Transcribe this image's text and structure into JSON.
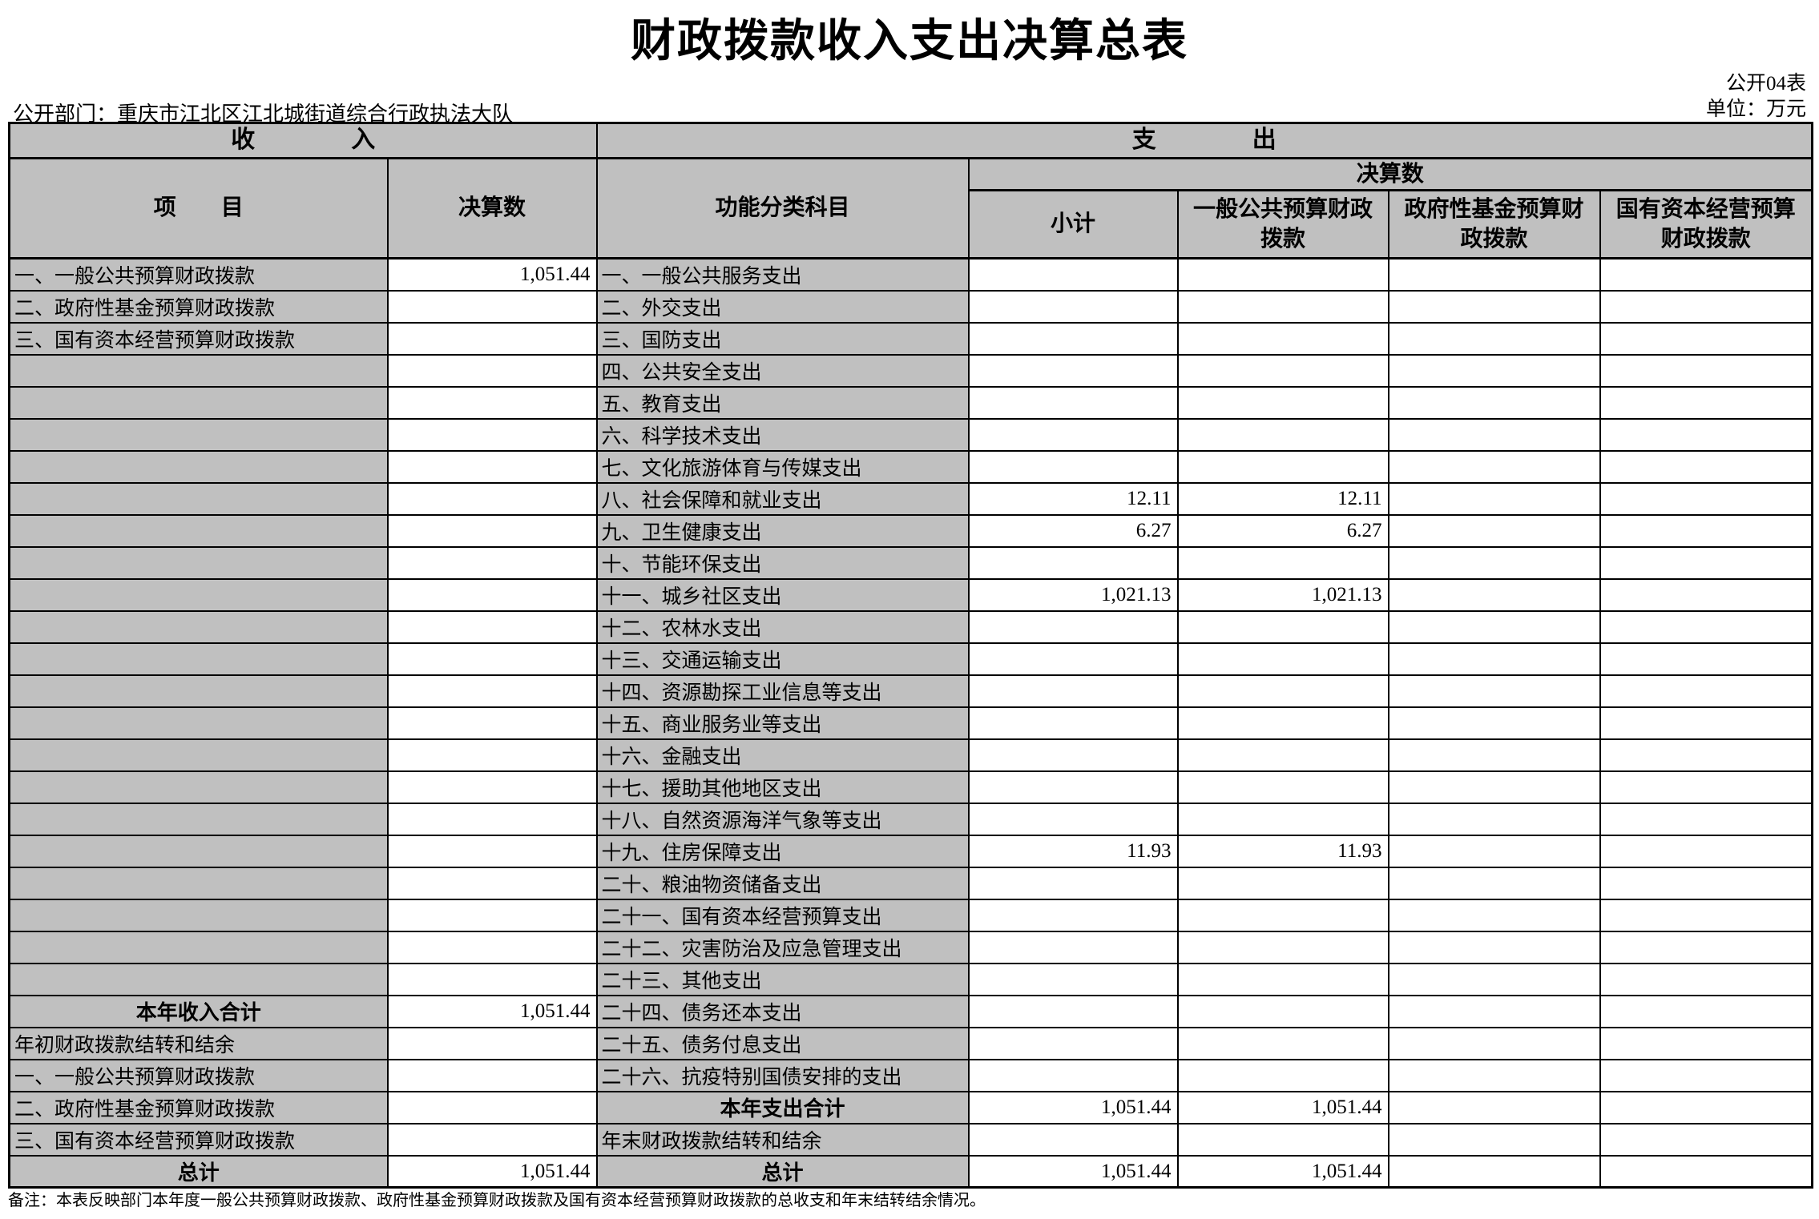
{
  "page": {
    "title": "财政拨款收入支出决算总表",
    "table_code": "公开04表",
    "unit_label": "单位：万元",
    "department_label": "公开部门：重庆市江北区江北城街道综合行政执法大队",
    "footnote": "备注：本表反映部门本年度一般公共预算财政拨款、政府性基金预算财政拨款及国有资本经营预算财政拨款的总收支和年末结转结余情况。"
  },
  "colors": {
    "header_bg": "#c0c0c0",
    "border": "#000000",
    "cell_bg": "#ffffff"
  },
  "table": {
    "income_section_header": "收　　　　入",
    "expense_section_header": "支　　　　出",
    "columns": {
      "item": "项　　目",
      "income_amount": "决算数",
      "functional_subject": "功能分类科目",
      "expense_amount_group": "决算数",
      "subtotal": "小计",
      "general_public_budget": "一般公共预算财政拨款",
      "gov_fund_budget": "政府性基金预算财政拨款",
      "state_capital_budget": "国有资本经营预算财政拨款"
    },
    "rows": [
      {
        "income_item": "一、一般公共预算财政拨款",
        "income_amount": "1,051.44",
        "income_is_total": false,
        "expense_item": "一、一般公共服务支出",
        "expense_is_total": false,
        "subtotal": "",
        "general_public": "",
        "gov_fund": "",
        "state_capital": ""
      },
      {
        "income_item": "二、政府性基金预算财政拨款",
        "income_amount": "",
        "income_is_total": false,
        "expense_item": "二、外交支出",
        "expense_is_total": false,
        "subtotal": "",
        "general_public": "",
        "gov_fund": "",
        "state_capital": ""
      },
      {
        "income_item": "三、国有资本经营预算财政拨款",
        "income_amount": "",
        "income_is_total": false,
        "expense_item": "三、国防支出",
        "expense_is_total": false,
        "subtotal": "",
        "general_public": "",
        "gov_fund": "",
        "state_capital": ""
      },
      {
        "income_item": "",
        "income_amount": "",
        "income_is_total": false,
        "expense_item": "四、公共安全支出",
        "expense_is_total": false,
        "subtotal": "",
        "general_public": "",
        "gov_fund": "",
        "state_capital": ""
      },
      {
        "income_item": "",
        "income_amount": "",
        "income_is_total": false,
        "expense_item": "五、教育支出",
        "expense_is_total": false,
        "subtotal": "",
        "general_public": "",
        "gov_fund": "",
        "state_capital": ""
      },
      {
        "income_item": "",
        "income_amount": "",
        "income_is_total": false,
        "expense_item": "六、科学技术支出",
        "expense_is_total": false,
        "subtotal": "",
        "general_public": "",
        "gov_fund": "",
        "state_capital": ""
      },
      {
        "income_item": "",
        "income_amount": "",
        "income_is_total": false,
        "expense_item": "七、文化旅游体育与传媒支出",
        "expense_is_total": false,
        "subtotal": "",
        "general_public": "",
        "gov_fund": "",
        "state_capital": ""
      },
      {
        "income_item": "",
        "income_amount": "",
        "income_is_total": false,
        "expense_item": "八、社会保障和就业支出",
        "expense_is_total": false,
        "subtotal": "12.11",
        "general_public": "12.11",
        "gov_fund": "",
        "state_capital": ""
      },
      {
        "income_item": "",
        "income_amount": "",
        "income_is_total": false,
        "expense_item": "九、卫生健康支出",
        "expense_is_total": false,
        "subtotal": "6.27",
        "general_public": "6.27",
        "gov_fund": "",
        "state_capital": ""
      },
      {
        "income_item": "",
        "income_amount": "",
        "income_is_total": false,
        "expense_item": "十、节能环保支出",
        "expense_is_total": false,
        "subtotal": "",
        "general_public": "",
        "gov_fund": "",
        "state_capital": ""
      },
      {
        "income_item": "",
        "income_amount": "",
        "income_is_total": false,
        "expense_item": "十一、城乡社区支出",
        "expense_is_total": false,
        "subtotal": "1,021.13",
        "general_public": "1,021.13",
        "gov_fund": "",
        "state_capital": ""
      },
      {
        "income_item": "",
        "income_amount": "",
        "income_is_total": false,
        "expense_item": "十二、农林水支出",
        "expense_is_total": false,
        "subtotal": "",
        "general_public": "",
        "gov_fund": "",
        "state_capital": ""
      },
      {
        "income_item": "",
        "income_amount": "",
        "income_is_total": false,
        "expense_item": "十三、交通运输支出",
        "expense_is_total": false,
        "subtotal": "",
        "general_public": "",
        "gov_fund": "",
        "state_capital": ""
      },
      {
        "income_item": "",
        "income_amount": "",
        "income_is_total": false,
        "expense_item": "十四、资源勘探工业信息等支出",
        "expense_is_total": false,
        "subtotal": "",
        "general_public": "",
        "gov_fund": "",
        "state_capital": ""
      },
      {
        "income_item": "",
        "income_amount": "",
        "income_is_total": false,
        "expense_item": "十五、商业服务业等支出",
        "expense_is_total": false,
        "subtotal": "",
        "general_public": "",
        "gov_fund": "",
        "state_capital": ""
      },
      {
        "income_item": "",
        "income_amount": "",
        "income_is_total": false,
        "expense_item": "十六、金融支出",
        "expense_is_total": false,
        "subtotal": "",
        "general_public": "",
        "gov_fund": "",
        "state_capital": ""
      },
      {
        "income_item": "",
        "income_amount": "",
        "income_is_total": false,
        "expense_item": "十七、援助其他地区支出",
        "expense_is_total": false,
        "subtotal": "",
        "general_public": "",
        "gov_fund": "",
        "state_capital": ""
      },
      {
        "income_item": "",
        "income_amount": "",
        "income_is_total": false,
        "expense_item": "十八、自然资源海洋气象等支出",
        "expense_is_total": false,
        "subtotal": "",
        "general_public": "",
        "gov_fund": "",
        "state_capital": ""
      },
      {
        "income_item": "",
        "income_amount": "",
        "income_is_total": false,
        "expense_item": "十九、住房保障支出",
        "expense_is_total": false,
        "subtotal": "11.93",
        "general_public": "11.93",
        "gov_fund": "",
        "state_capital": ""
      },
      {
        "income_item": "",
        "income_amount": "",
        "income_is_total": false,
        "expense_item": "二十、粮油物资储备支出",
        "expense_is_total": false,
        "subtotal": "",
        "general_public": "",
        "gov_fund": "",
        "state_capital": ""
      },
      {
        "income_item": "",
        "income_amount": "",
        "income_is_total": false,
        "expense_item": "二十一、国有资本经营预算支出",
        "expense_is_total": false,
        "subtotal": "",
        "general_public": "",
        "gov_fund": "",
        "state_capital": ""
      },
      {
        "income_item": "",
        "income_amount": "",
        "income_is_total": false,
        "expense_item": "二十二、灾害防治及应急管理支出",
        "expense_is_total": false,
        "subtotal": "",
        "general_public": "",
        "gov_fund": "",
        "state_capital": ""
      },
      {
        "income_item": "",
        "income_amount": "",
        "income_is_total": false,
        "expense_item": "二十三、其他支出",
        "expense_is_total": false,
        "subtotal": "",
        "general_public": "",
        "gov_fund": "",
        "state_capital": ""
      },
      {
        "income_item": "本年收入合计",
        "income_amount": "1,051.44",
        "income_is_total": true,
        "expense_item": "二十四、债务还本支出",
        "expense_is_total": false,
        "subtotal": "",
        "general_public": "",
        "gov_fund": "",
        "state_capital": ""
      },
      {
        "income_item": "年初财政拨款结转和结余",
        "income_amount": "",
        "income_is_total": false,
        "expense_item": "二十五、债务付息支出",
        "expense_is_total": false,
        "subtotal": "",
        "general_public": "",
        "gov_fund": "",
        "state_capital": ""
      },
      {
        "income_item": "一、一般公共预算财政拨款",
        "income_amount": "",
        "income_is_total": false,
        "expense_item": "二十六、抗疫特别国债安排的支出",
        "expense_is_total": false,
        "subtotal": "",
        "general_public": "",
        "gov_fund": "",
        "state_capital": ""
      },
      {
        "income_item": "二、政府性基金预算财政拨款",
        "income_amount": "",
        "income_is_total": false,
        "expense_item": "本年支出合计",
        "expense_is_total": true,
        "subtotal": "1,051.44",
        "general_public": "1,051.44",
        "gov_fund": "",
        "state_capital": ""
      },
      {
        "income_item": "三、国有资本经营预算财政拨款",
        "income_amount": "",
        "income_is_total": false,
        "expense_item": "年末财政拨款结转和结余",
        "expense_is_total": false,
        "subtotal": "",
        "general_public": "",
        "gov_fund": "",
        "state_capital": ""
      },
      {
        "income_item": "总计",
        "income_amount": "1,051.44",
        "income_is_total": true,
        "expense_item": "总计",
        "expense_is_total": true,
        "subtotal": "1,051.44",
        "general_public": "1,051.44",
        "gov_fund": "",
        "state_capital": ""
      }
    ]
  }
}
